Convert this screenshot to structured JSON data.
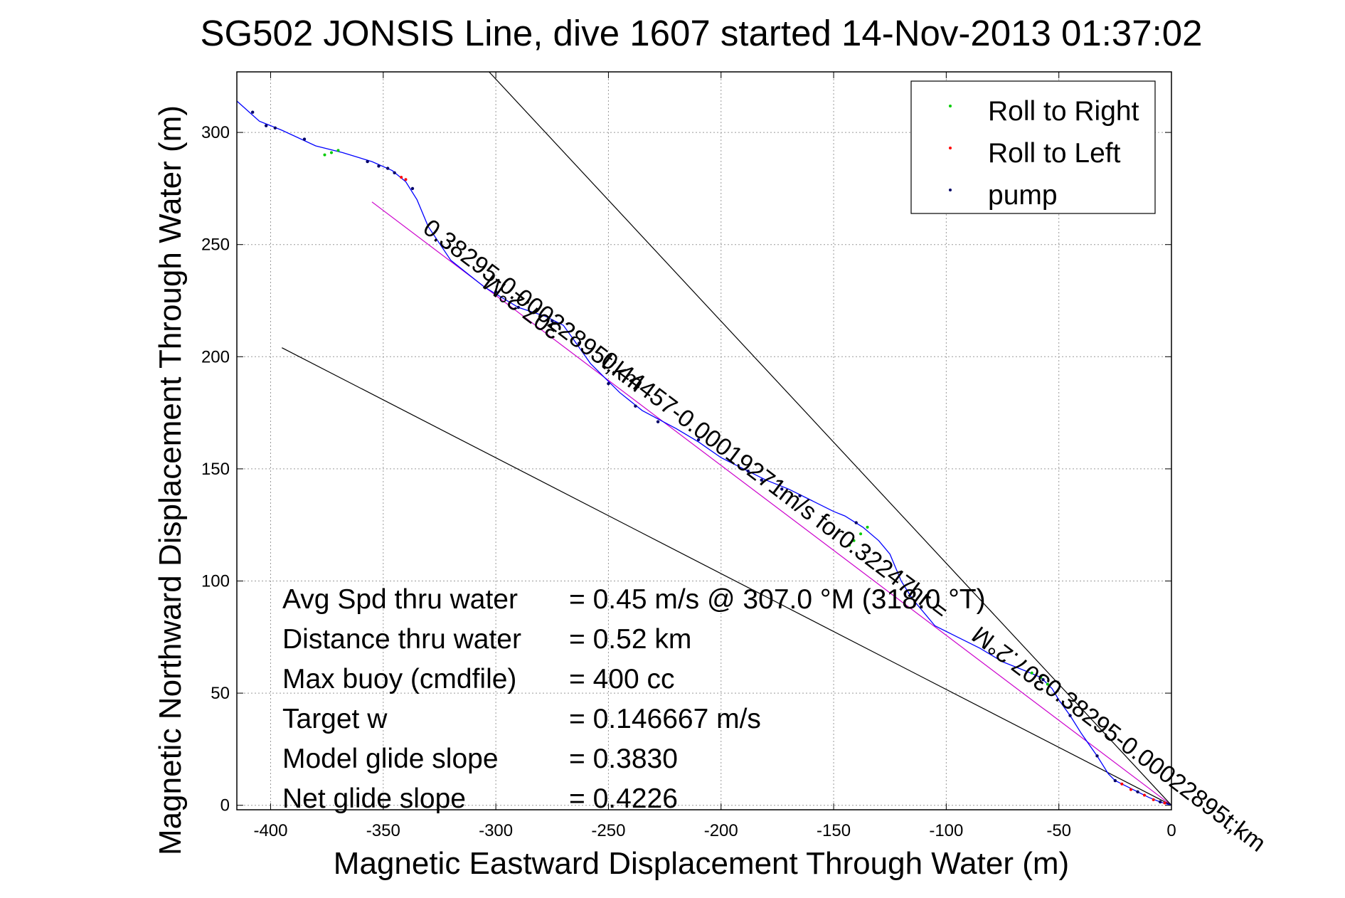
{
  "chart_data": {
    "type": "line",
    "title": "SG502 JONSIS Line, dive 1607 started 14-Nov-2013 01:37:02",
    "xlabel": "Magnetic Eastward Displacement Through Water (m)",
    "ylabel": "Magnetic Northward Displacement Through Water (m)",
    "xlim": [
      -415,
      0
    ],
    "ylim": [
      -2,
      327
    ],
    "grid": true,
    "x_ticks": [
      -400,
      -350,
      -300,
      -250,
      -200,
      -150,
      -100,
      -50,
      0
    ],
    "y_ticks": [
      0,
      50,
      100,
      150,
      200,
      250,
      300
    ],
    "legend_position": "top-right",
    "legend": [
      {
        "label": "Roll to Right",
        "color": "#00cc00"
      },
      {
        "label": "Roll to Left",
        "color": "#ff0000"
      },
      {
        "label": "pump",
        "color": "#000066"
      }
    ],
    "track": {
      "color": "#0000ff",
      "points": [
        [
          0,
          0
        ],
        [
          -5,
          1.5
        ],
        [
          -10,
          3.5
        ],
        [
          -15,
          6
        ],
        [
          -20,
          8.5
        ],
        [
          -25,
          11
        ],
        [
          -28,
          14
        ],
        [
          -33,
          22
        ],
        [
          -40,
          32
        ],
        [
          -45,
          40
        ],
        [
          -50,
          47
        ],
        [
          -53,
          52
        ],
        [
          -58,
          57
        ],
        [
          -65,
          60
        ],
        [
          -75,
          64
        ],
        [
          -85,
          70
        ],
        [
          -95,
          75
        ],
        [
          -105,
          80
        ],
        [
          -115,
          92
        ],
        [
          -120,
          100
        ],
        [
          -125,
          112
        ],
        [
          -130,
          118
        ],
        [
          -137,
          124
        ],
        [
          -145,
          129
        ],
        [
          -150,
          131
        ],
        [
          -160,
          136
        ],
        [
          -170,
          141
        ],
        [
          -180,
          145
        ],
        [
          -190,
          150
        ],
        [
          -200,
          155
        ],
        [
          -210,
          162
        ],
        [
          -220,
          168
        ],
        [
          -235,
          176
        ],
        [
          -245,
          184
        ],
        [
          -252,
          191
        ],
        [
          -258,
          197
        ],
        [
          -265,
          207
        ],
        [
          -270,
          214
        ],
        [
          -278,
          218
        ],
        [
          -290,
          222
        ],
        [
          -305,
          231
        ],
        [
          -320,
          243
        ],
        [
          -330,
          258
        ],
        [
          -335,
          270
        ],
        [
          -340,
          278
        ],
        [
          -346,
          283
        ],
        [
          -355,
          287
        ],
        [
          -368,
          291
        ],
        [
          -380,
          294
        ],
        [
          -395,
          301
        ],
        [
          -405,
          305
        ],
        [
          -415,
          314
        ]
      ]
    },
    "pump_points": [
      [
        -5,
        1.5
      ],
      [
        -15,
        6
      ],
      [
        -25,
        11
      ],
      [
        -33,
        22
      ],
      [
        -45,
        40
      ],
      [
        -57,
        56
      ],
      [
        -140,
        126
      ],
      [
        -165,
        138
      ],
      [
        -173,
        141
      ],
      [
        -182,
        145
      ],
      [
        -188,
        149
      ],
      [
        -210,
        163
      ],
      [
        -228,
        171
      ],
      [
        -238,
        178
      ],
      [
        -250,
        188
      ],
      [
        -263,
        206
      ],
      [
        -275,
        216
      ],
      [
        -290,
        222
      ],
      [
        -300,
        229
      ],
      [
        -337,
        275
      ],
      [
        -345,
        282
      ],
      [
        -348,
        284
      ],
      [
        -352,
        285
      ],
      [
        -357,
        287
      ],
      [
        -385,
        297
      ],
      [
        -398,
        302
      ],
      [
        -402,
        303
      ],
      [
        -408,
        309
      ]
    ],
    "roll_right_points": [
      [
        -55,
        54
      ],
      [
        -58,
        57
      ],
      [
        -62,
        59
      ],
      [
        -135,
        124
      ],
      [
        -138,
        121
      ],
      [
        -141,
        118
      ],
      [
        -143,
        116
      ],
      [
        -370,
        292
      ],
      [
        -373,
        291
      ],
      [
        -376,
        290
      ]
    ],
    "roll_left_points": [
      [
        -3,
        1
      ],
      [
        -8,
        2.5
      ],
      [
        -12,
        4.5
      ],
      [
        -18,
        7
      ],
      [
        -22,
        9.5
      ],
      [
        -340,
        279
      ],
      [
        -342,
        280
      ]
    ],
    "reference_lines": [
      {
        "name": "model glide slope fit",
        "color": "#cc00cc",
        "from": [
          0,
          0
        ],
        "to": [
          -355,
          269
        ]
      },
      {
        "name": "bound line upper",
        "color": "#000000",
        "from": [
          0,
          0
        ],
        "to": [
          -303,
          327
        ]
      },
      {
        "name": "bound line lower",
        "color": "#000000",
        "from": [
          0,
          0
        ],
        "to": [
          -395,
          204
        ]
      }
    ],
    "annotations": [
      {
        "text": "307.2°M",
        "at": [
          -270,
          213
        ],
        "angle": -143
      },
      {
        "text": "0.38295-0.00022895t;km",
        "at": [
          -333,
          256
        ],
        "angle": 37
      },
      {
        "text": "0.44457-0.00019271m/s for0.32247hr =",
        "at": [
          -254,
          197
        ],
        "angle": 37
      },
      {
        "text": "0.38295-0.00022895t;km",
        "at": [
          -57,
          51
        ],
        "angle": 37
      },
      {
        "text": "307.2°M",
        "at": [
          -53,
          56
        ],
        "angle": -143
      }
    ]
  },
  "stats": [
    {
      "label": "Avg Spd thru water",
      "value": "=  0.45 m/s @ 307.0  °M (318.0 °T)"
    },
    {
      "label": "Distance thru water",
      "value": "=  0.52 km"
    },
    {
      "label": "Max buoy (cmdfile)",
      "value": "= 400 cc"
    },
    {
      "label": "Target w",
      "value": "= 0.146667 m/s"
    },
    {
      "label": "Model glide slope",
      "value": "= 0.3830"
    },
    {
      "label": "Net glide slope",
      "value": "= 0.4226"
    }
  ]
}
